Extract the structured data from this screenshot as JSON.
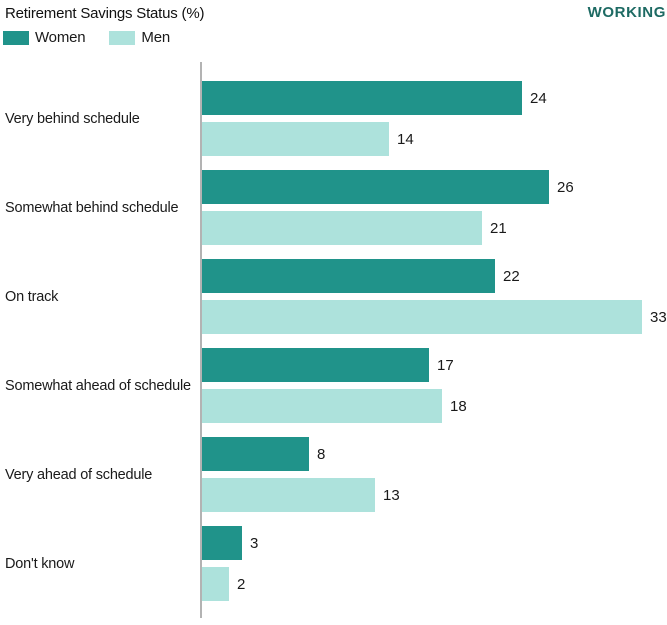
{
  "header": {
    "title": "Retirement Savings Status (%)",
    "corner_label": "WORKING"
  },
  "chart_data": {
    "type": "bar",
    "orientation": "horizontal",
    "title": "Retirement Savings Status (%)",
    "categories": [
      "Very behind schedule",
      "Somewhat behind schedule",
      "On track",
      "Somewhat ahead of schedule",
      "Very ahead of schedule",
      "Don't know"
    ],
    "series": [
      {
        "name": "Women",
        "color": "#20938a",
        "values": [
          24,
          26,
          22,
          17,
          8,
          3
        ]
      },
      {
        "name": "Men",
        "color": "#ade2dc",
        "values": [
          14,
          21,
          33,
          18,
          13,
          2
        ]
      }
    ],
    "xlim": [
      0,
      33
    ],
    "value_labels": "outside-end",
    "legend_position": "top-left",
    "grid": false,
    "axis_line_color": "#b3b3b3"
  }
}
